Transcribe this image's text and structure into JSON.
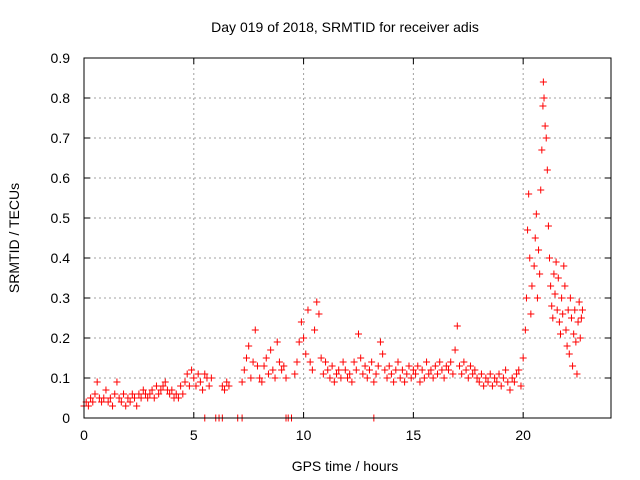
{
  "chart_data": {
    "type": "scatter",
    "title": "Day 019 of 2018, SRMTID for receiver adis",
    "xlabel": "GPS time / hours",
    "ylabel": "SRMTID / TECUs",
    "xlim": [
      0,
      24
    ],
    "ylim": [
      0,
      0.9
    ],
    "xticks": [
      0,
      5,
      10,
      15,
      20
    ],
    "xtick_labels": [
      "0",
      "5",
      "10",
      "15",
      "20"
    ],
    "yticks": [
      0,
      0.1,
      0.2,
      0.3,
      0.4,
      0.5,
      0.6,
      0.7,
      0.8,
      0.9
    ],
    "ytick_labels": [
      "0",
      "0.1",
      "0.2",
      "0.3",
      "0.4",
      "0.5",
      "0.6",
      "0.7",
      "0.8",
      "0.9"
    ],
    "grid": true,
    "marker": "+",
    "series": [
      {
        "name": "SRMTID",
        "color": "#ff0000",
        "points": [
          [
            0.0,
            0.03
          ],
          [
            0.1,
            0.04
          ],
          [
            0.2,
            0.03
          ],
          [
            0.3,
            0.05
          ],
          [
            0.4,
            0.04
          ],
          [
            0.5,
            0.06
          ],
          [
            0.6,
            0.09
          ],
          [
            0.7,
            0.05
          ],
          [
            0.8,
            0.04
          ],
          [
            0.9,
            0.05
          ],
          [
            1.0,
            0.07
          ],
          [
            1.1,
            0.04
          ],
          [
            1.2,
            0.05
          ],
          [
            1.3,
            0.03
          ],
          [
            1.4,
            0.06
          ],
          [
            1.5,
            0.09
          ],
          [
            1.6,
            0.05
          ],
          [
            1.7,
            0.04
          ],
          [
            1.8,
            0.06
          ],
          [
            1.9,
            0.03
          ],
          [
            2.0,
            0.05
          ],
          [
            2.1,
            0.04
          ],
          [
            2.2,
            0.06
          ],
          [
            2.3,
            0.05
          ],
          [
            2.4,
            0.03
          ],
          [
            2.5,
            0.06
          ],
          [
            2.6,
            0.05
          ],
          [
            2.7,
            0.07
          ],
          [
            2.8,
            0.06
          ],
          [
            2.9,
            0.05
          ],
          [
            3.0,
            0.06
          ],
          [
            3.1,
            0.07
          ],
          [
            3.2,
            0.05
          ],
          [
            3.3,
            0.08
          ],
          [
            3.4,
            0.06
          ],
          [
            3.5,
            0.07
          ],
          [
            3.6,
            0.08
          ],
          [
            3.7,
            0.09
          ],
          [
            3.8,
            0.07
          ],
          [
            3.9,
            0.06
          ],
          [
            4.0,
            0.07
          ],
          [
            4.1,
            0.05
          ],
          [
            4.2,
            0.06
          ],
          [
            4.3,
            0.05
          ],
          [
            4.4,
            0.08
          ],
          [
            4.5,
            0.06
          ],
          [
            4.6,
            0.09
          ],
          [
            4.7,
            0.11
          ],
          [
            4.8,
            0.08
          ],
          [
            4.9,
            0.12
          ],
          [
            5.0,
            0.1
          ],
          [
            5.1,
            0.08
          ],
          [
            5.2,
            0.11
          ],
          [
            5.3,
            0.09
          ],
          [
            5.4,
            0.07
          ],
          [
            5.5,
            0.11
          ],
          [
            5.6,
            0.1
          ],
          [
            5.7,
            0.08
          ],
          [
            5.8,
            0.1
          ],
          [
            6.3,
            0.08
          ],
          [
            6.4,
            0.07
          ],
          [
            6.5,
            0.09
          ],
          [
            6.6,
            0.08
          ],
          [
            7.2,
            0.09
          ],
          [
            7.3,
            0.12
          ],
          [
            7.4,
            0.15
          ],
          [
            7.5,
            0.18
          ],
          [
            7.6,
            0.1
          ],
          [
            7.7,
            0.14
          ],
          [
            7.8,
            0.22
          ],
          [
            7.9,
            0.13
          ],
          [
            8.0,
            0.1
          ],
          [
            8.1,
            0.09
          ],
          [
            8.2,
            0.13
          ],
          [
            8.3,
            0.15
          ],
          [
            8.4,
            0.11
          ],
          [
            8.5,
            0.17
          ],
          [
            8.6,
            0.12
          ],
          [
            8.7,
            0.1
          ],
          [
            8.8,
            0.19
          ],
          [
            8.9,
            0.14
          ],
          [
            9.0,
            0.12
          ],
          [
            9.1,
            0.13
          ],
          [
            9.2,
            0.1
          ],
          [
            9.6,
            0.11
          ],
          [
            9.7,
            0.14
          ],
          [
            9.8,
            0.19
          ],
          [
            9.9,
            0.24
          ],
          [
            10.0,
            0.2
          ],
          [
            10.1,
            0.16
          ],
          [
            10.2,
            0.27
          ],
          [
            10.3,
            0.14
          ],
          [
            10.4,
            0.12
          ],
          [
            10.5,
            0.22
          ],
          [
            10.6,
            0.29
          ],
          [
            10.7,
            0.26
          ],
          [
            10.8,
            0.15
          ],
          [
            10.9,
            0.11
          ],
          [
            11.0,
            0.14
          ],
          [
            11.1,
            0.12
          ],
          [
            11.2,
            0.1
          ],
          [
            11.3,
            0.13
          ],
          [
            11.4,
            0.09
          ],
          [
            11.5,
            0.11
          ],
          [
            11.6,
            0.12
          ],
          [
            11.7,
            0.1
          ],
          [
            11.8,
            0.14
          ],
          [
            11.9,
            0.12
          ],
          [
            12.0,
            0.1
          ],
          [
            12.1,
            0.11
          ],
          [
            12.2,
            0.09
          ],
          [
            12.3,
            0.14
          ],
          [
            12.4,
            0.12
          ],
          [
            12.5,
            0.21
          ],
          [
            12.6,
            0.15
          ],
          [
            12.7,
            0.11
          ],
          [
            12.8,
            0.13
          ],
          [
            12.9,
            0.1
          ],
          [
            13.0,
            0.12
          ],
          [
            13.1,
            0.14
          ],
          [
            13.2,
            0.09
          ],
          [
            13.3,
            0.11
          ],
          [
            13.4,
            0.13
          ],
          [
            13.5,
            0.19
          ],
          [
            13.6,
            0.16
          ],
          [
            13.7,
            0.12
          ],
          [
            13.8,
            0.1
          ],
          [
            13.9,
            0.13
          ],
          [
            14.0,
            0.11
          ],
          [
            14.1,
            0.09
          ],
          [
            14.2,
            0.12
          ],
          [
            14.3,
            0.14
          ],
          [
            14.4,
            0.1
          ],
          [
            14.5,
            0.12
          ],
          [
            14.6,
            0.09
          ],
          [
            14.7,
            0.11
          ],
          [
            14.8,
            0.13
          ],
          [
            14.9,
            0.1
          ],
          [
            15.0,
            0.12
          ],
          [
            15.1,
            0.11
          ],
          [
            15.2,
            0.13
          ],
          [
            15.3,
            0.09
          ],
          [
            15.4,
            0.12
          ],
          [
            15.5,
            0.1
          ],
          [
            15.6,
            0.14
          ],
          [
            15.7,
            0.11
          ],
          [
            15.8,
            0.12
          ],
          [
            15.9,
            0.1
          ],
          [
            16.0,
            0.13
          ],
          [
            16.1,
            0.11
          ],
          [
            16.2,
            0.14
          ],
          [
            16.3,
            0.12
          ],
          [
            16.4,
            0.1
          ],
          [
            16.5,
            0.13
          ],
          [
            16.6,
            0.12
          ],
          [
            16.7,
            0.14
          ],
          [
            16.8,
            0.11
          ],
          [
            16.9,
            0.17
          ],
          [
            17.0,
            0.23
          ],
          [
            17.1,
            0.13
          ],
          [
            17.2,
            0.11
          ],
          [
            17.3,
            0.14
          ],
          [
            17.4,
            0.12
          ],
          [
            17.5,
            0.1
          ],
          [
            17.6,
            0.13
          ],
          [
            17.7,
            0.11
          ],
          [
            17.8,
            0.12
          ],
          [
            17.9,
            0.1
          ],
          [
            18.0,
            0.09
          ],
          [
            18.1,
            0.11
          ],
          [
            18.2,
            0.08
          ],
          [
            18.3,
            0.1
          ],
          [
            18.4,
            0.09
          ],
          [
            18.5,
            0.11
          ],
          [
            18.6,
            0.08
          ],
          [
            18.7,
            0.1
          ],
          [
            18.8,
            0.09
          ],
          [
            18.9,
            0.11
          ],
          [
            19.0,
            0.08
          ],
          [
            19.1,
            0.1
          ],
          [
            19.2,
            0.12
          ],
          [
            19.3,
            0.09
          ],
          [
            19.4,
            0.07
          ],
          [
            19.5,
            0.1
          ],
          [
            19.6,
            0.09
          ],
          [
            19.7,
            0.11
          ],
          [
            19.8,
            0.12
          ],
          [
            19.9,
            0.08
          ],
          [
            20.0,
            0.15
          ],
          [
            20.1,
            0.22
          ],
          [
            20.15,
            0.3
          ],
          [
            20.2,
            0.47
          ],
          [
            20.25,
            0.56
          ],
          [
            20.3,
            0.4
          ],
          [
            20.35,
            0.26
          ],
          [
            20.4,
            0.33
          ],
          [
            20.5,
            0.38
          ],
          [
            20.55,
            0.45
          ],
          [
            20.6,
            0.51
          ],
          [
            20.65,
            0.3
          ],
          [
            20.7,
            0.42
          ],
          [
            20.75,
            0.36
          ],
          [
            20.8,
            0.57
          ],
          [
            20.85,
            0.67
          ],
          [
            20.9,
            0.78
          ],
          [
            20.92,
            0.84
          ],
          [
            20.95,
            0.8
          ],
          [
            21.0,
            0.73
          ],
          [
            21.05,
            0.7
          ],
          [
            21.1,
            0.62
          ],
          [
            21.15,
            0.48
          ],
          [
            21.2,
            0.4
          ],
          [
            21.25,
            0.33
          ],
          [
            21.3,
            0.28
          ],
          [
            21.35,
            0.25
          ],
          [
            21.4,
            0.36
          ],
          [
            21.45,
            0.31
          ],
          [
            21.5,
            0.39
          ],
          [
            21.55,
            0.27
          ],
          [
            21.6,
            0.35
          ],
          [
            21.65,
            0.24
          ],
          [
            21.7,
            0.21
          ],
          [
            21.75,
            0.3
          ],
          [
            21.8,
            0.26
          ],
          [
            21.85,
            0.38
          ],
          [
            21.9,
            0.33
          ],
          [
            21.95,
            0.22
          ],
          [
            22.0,
            0.18
          ],
          [
            22.05,
            0.27
          ],
          [
            22.1,
            0.16
          ],
          [
            22.15,
            0.3
          ],
          [
            22.2,
            0.25
          ],
          [
            22.25,
            0.13
          ],
          [
            22.3,
            0.21
          ],
          [
            22.35,
            0.27
          ],
          [
            22.4,
            0.19
          ],
          [
            22.45,
            0.11
          ],
          [
            22.5,
            0.24
          ],
          [
            22.55,
            0.29
          ],
          [
            22.6,
            0.2
          ],
          [
            22.65,
            0.25
          ],
          [
            22.7,
            0.27
          ]
        ]
      }
    ],
    "zero_points_x": [
      5.5,
      6.0,
      6.15,
      6.3,
      7.0,
      7.2,
      9.2,
      9.3,
      9.45,
      13.2
    ]
  }
}
